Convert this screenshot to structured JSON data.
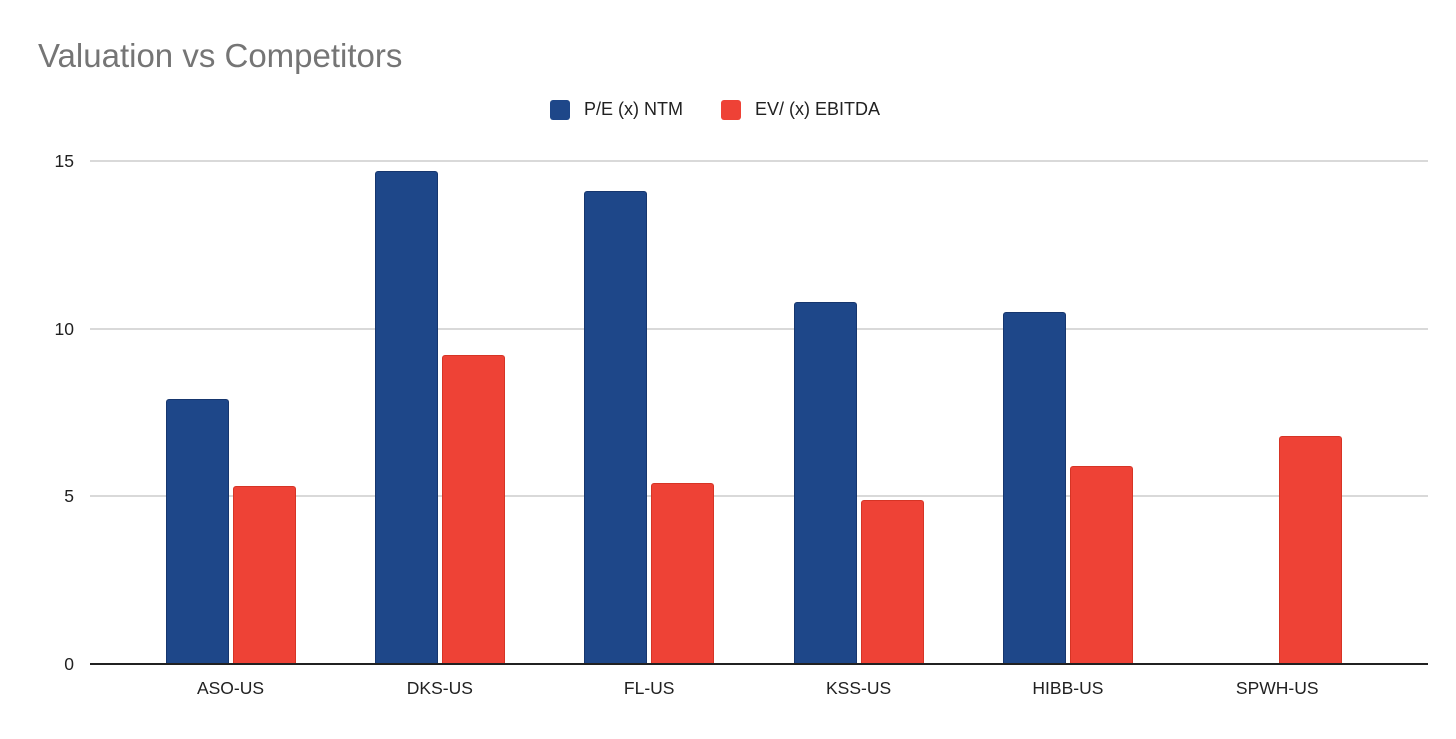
{
  "page": {
    "background": "#ffffff"
  },
  "chart": {
    "title": "Valuation vs Competitors",
    "title_color": "#757575"
  },
  "chart_data": {
    "type": "bar",
    "title": "Valuation vs Competitors",
    "categories": [
      "ASO-US",
      "DKS-US",
      "FL-US",
      "KSS-US",
      "HIBB-US",
      "SPWH-US"
    ],
    "series": [
      {
        "name": "P/E (x) NTM",
        "color": "#1e4789",
        "border_color": "#16366e",
        "values": [
          7.9,
          14.7,
          14.1,
          10.8,
          10.5,
          null
        ]
      },
      {
        "name": "EV/ (x) EBITDA",
        "color": "#ee4236",
        "border_color": "#d63425",
        "values": [
          5.3,
          9.2,
          5.4,
          4.9,
          5.9,
          6.8
        ]
      }
    ],
    "xlabel": "",
    "ylabel": "",
    "ylim": [
      0,
      15
    ],
    "yticks": [
      0,
      5,
      10,
      15
    ],
    "grid": true,
    "gridline_color": "#d9d9d9",
    "axis_color": "#212121",
    "tick_label_color": "#212121",
    "category_label_color": "#212121",
    "legend_position": "top-center"
  }
}
